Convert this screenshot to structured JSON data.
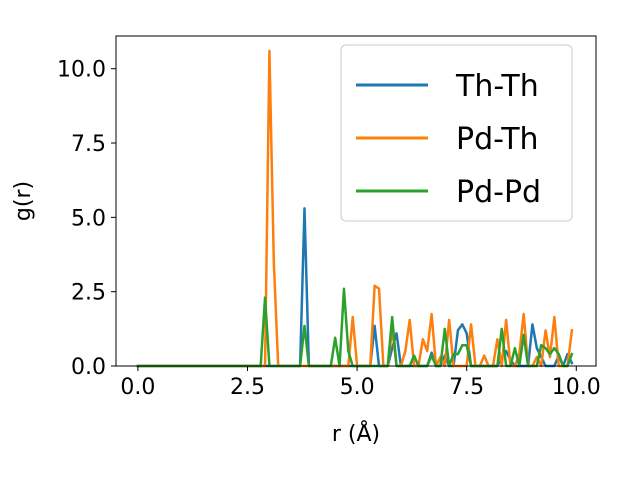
{
  "chart_data": {
    "type": "line",
    "xlabel": "r (Å)",
    "ylabel": "g(r)",
    "xlim": [
      -0.5,
      10.45
    ],
    "ylim": [
      0,
      11.1
    ],
    "xticks": [
      0.0,
      2.5,
      5.0,
      7.5,
      10.0
    ],
    "xtick_labels": [
      "0.0",
      "2.5",
      "5.0",
      "7.5",
      "10.0"
    ],
    "yticks": [
      0.0,
      2.5,
      5.0,
      7.5,
      10.0
    ],
    "ytick_labels": [
      "0.0",
      "2.5",
      "5.0",
      "7.5",
      "10.0"
    ],
    "grid": false,
    "legend_position": "top-right",
    "x": [
      0.0,
      0.1,
      0.2,
      0.3,
      0.4,
      0.5,
      0.6,
      0.7,
      0.8,
      0.9,
      1.0,
      1.1,
      1.2,
      1.3,
      1.4,
      1.5,
      1.6,
      1.7,
      1.8,
      1.9,
      2.0,
      2.1,
      2.2,
      2.3,
      2.4,
      2.5,
      2.6,
      2.7,
      2.8,
      2.9,
      3.0,
      3.1,
      3.2,
      3.3,
      3.4,
      3.5,
      3.6,
      3.7,
      3.8,
      3.9,
      4.0,
      4.1,
      4.2,
      4.3,
      4.4,
      4.5,
      4.6,
      4.7,
      4.8,
      4.9,
      5.0,
      5.1,
      5.2,
      5.3,
      5.4,
      5.5,
      5.6,
      5.7,
      5.8,
      5.9,
      6.0,
      6.1,
      6.2,
      6.3,
      6.4,
      6.5,
      6.6,
      6.7,
      6.8,
      6.9,
      7.0,
      7.1,
      7.2,
      7.3,
      7.4,
      7.5,
      7.6,
      7.7,
      7.8,
      7.9,
      8.0,
      8.1,
      8.2,
      8.3,
      8.4,
      8.5,
      8.6,
      8.7,
      8.8,
      8.9,
      9.0,
      9.1,
      9.2,
      9.3,
      9.4,
      9.5,
      9.6,
      9.7,
      9.8,
      9.9
    ],
    "series": [
      {
        "name": "Th-Th",
        "color": "#1f77b4",
        "values": [
          0,
          0,
          0,
          0,
          0,
          0,
          0,
          0,
          0,
          0,
          0,
          0,
          0,
          0,
          0,
          0,
          0,
          0,
          0,
          0,
          0,
          0,
          0,
          0,
          0,
          0,
          0,
          0,
          0,
          0,
          0,
          0,
          0,
          0,
          0,
          0,
          0,
          0,
          5.3,
          0,
          0,
          0,
          0,
          0,
          0,
          0,
          0,
          0,
          0,
          0,
          0,
          0,
          0,
          0,
          1.35,
          0,
          0,
          0,
          0.6,
          1.1,
          0,
          0,
          0,
          0,
          0,
          0,
          0,
          0.45,
          0,
          0,
          0.35,
          0,
          0,
          1.2,
          1.4,
          1.1,
          0,
          0,
          0,
          0,
          0,
          0,
          0,
          0.3,
          0.5,
          0.2,
          0,
          0,
          0,
          0,
          1.4,
          0.6,
          0.3,
          0,
          0,
          0,
          0.35,
          0,
          0.4,
          0.1
        ]
      },
      {
        "name": "Pd-Th",
        "color": "#ff7f0e",
        "values": [
          0,
          0,
          0,
          0,
          0,
          0,
          0,
          0,
          0,
          0,
          0,
          0,
          0,
          0,
          0,
          0,
          0,
          0,
          0,
          0,
          0,
          0,
          0,
          0,
          0,
          0,
          0,
          0,
          0,
          0,
          10.6,
          3.5,
          0,
          0,
          0,
          0,
          0,
          0,
          0,
          0,
          0,
          0,
          0,
          0,
          0,
          0,
          0,
          0,
          0,
          1.65,
          0,
          0,
          0,
          0,
          2.7,
          2.6,
          0,
          0,
          1.25,
          0,
          0,
          0.5,
          1.55,
          0,
          0,
          0.9,
          0.5,
          1.75,
          0,
          0.3,
          0,
          1.55,
          0,
          0,
          0,
          0,
          1.4,
          0,
          0,
          0.35,
          0,
          0,
          0.9,
          0,
          1.55,
          0,
          0,
          0.4,
          1.75,
          0,
          0,
          0.3,
          0,
          1.2,
          0.3,
          1.65,
          0,
          0,
          0,
          1.2
        ]
      },
      {
        "name": "Pd-Pd",
        "color": "#2ca02c",
        "values": [
          0,
          0,
          0,
          0,
          0,
          0,
          0,
          0,
          0,
          0,
          0,
          0,
          0,
          0,
          0,
          0,
          0,
          0,
          0,
          0,
          0,
          0,
          0,
          0,
          0,
          0,
          0,
          0,
          0,
          2.3,
          0,
          0,
          0,
          0,
          0,
          0,
          0,
          0,
          1.35,
          0,
          0,
          0,
          0,
          0,
          0,
          0.95,
          0,
          2.6,
          0.5,
          0,
          0,
          0,
          0,
          0,
          0,
          0,
          0,
          0,
          1.65,
          0,
          0,
          0,
          0,
          0.35,
          0,
          0,
          0,
          0.35,
          0,
          0,
          1.25,
          0,
          0.4,
          0.4,
          0.7,
          0.7,
          0,
          0,
          0,
          0,
          0,
          0,
          0,
          1.25,
          0,
          0,
          0.6,
          0,
          1.05,
          0,
          0,
          0,
          0.7,
          0.6,
          0.4,
          0.6,
          0.4,
          0,
          0,
          0.4
        ]
      }
    ]
  }
}
